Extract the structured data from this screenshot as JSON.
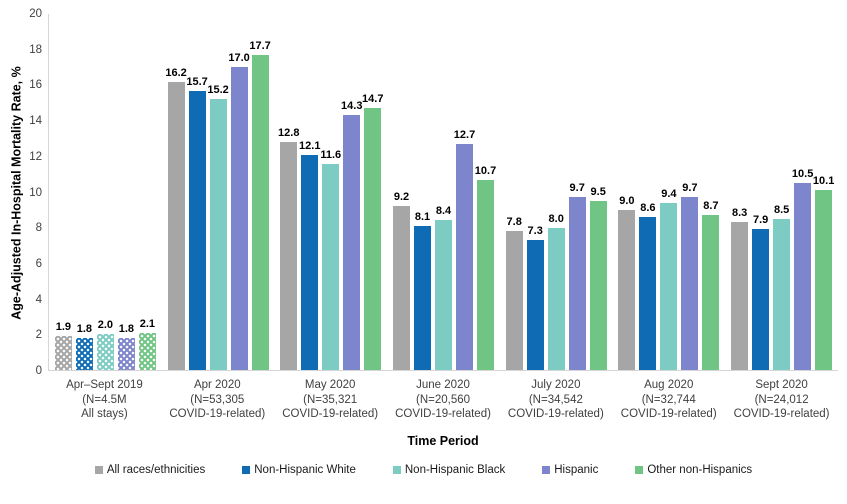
{
  "chart_data": {
    "type": "bar",
    "title": "",
    "xlabel": "Time Period",
    "ylabel": "Age-Adjusted In-Hospital Mortality Rate, %",
    "ylim": [
      0,
      20
    ],
    "ytick_step": 2,
    "grid": false,
    "legend_position": "bottom",
    "value_labels": true,
    "value_label_decimals": 1,
    "axis_line_color": "#d6d6d6",
    "categories": [
      {
        "lines": [
          "Apr–Sept 2019",
          "(N=4.5M",
          "All stays)"
        ],
        "pattern": "dotted"
      },
      {
        "lines": [
          "Apr 2020",
          "(N=53,305",
          "COVID-19-related)"
        ],
        "pattern": "solid"
      },
      {
        "lines": [
          "May 2020",
          "(N=35,321",
          "COVID-19-related)"
        ],
        "pattern": "solid"
      },
      {
        "lines": [
          "June 2020",
          "(N=20,560",
          "COVID-19-related)"
        ],
        "pattern": "solid"
      },
      {
        "lines": [
          "July 2020",
          "(N=34,542",
          "COVID-19-related)"
        ],
        "pattern": "solid"
      },
      {
        "lines": [
          "Aug 2020",
          "(N=32,744",
          "COVID-19-related)"
        ],
        "pattern": "solid"
      },
      {
        "lines": [
          "Sept 2020",
          "(N=24,012",
          "COVID-19-related)"
        ],
        "pattern": "solid"
      }
    ],
    "series": [
      {
        "name": "All races/ethnicities",
        "color": "#a6a6a6",
        "values": [
          1.9,
          16.2,
          12.8,
          9.2,
          7.8,
          9.0,
          8.3
        ]
      },
      {
        "name": "Non-Hispanic White",
        "color": "#0f6cb4",
        "values": [
          1.8,
          15.7,
          12.1,
          8.1,
          7.3,
          8.6,
          7.9
        ]
      },
      {
        "name": "Non-Hispanic Black",
        "color": "#7dccc4",
        "values": [
          2.0,
          15.2,
          11.6,
          8.4,
          8.0,
          9.4,
          8.5
        ]
      },
      {
        "name": "Hispanic",
        "color": "#7d85cc",
        "values": [
          1.8,
          17.0,
          14.3,
          12.7,
          9.7,
          9.7,
          10.5
        ]
      },
      {
        "name": "Other non-Hispanics",
        "color": "#71c584",
        "values": [
          2.1,
          17.7,
          14.7,
          10.7,
          9.5,
          8.7,
          10.1
        ]
      }
    ]
  }
}
